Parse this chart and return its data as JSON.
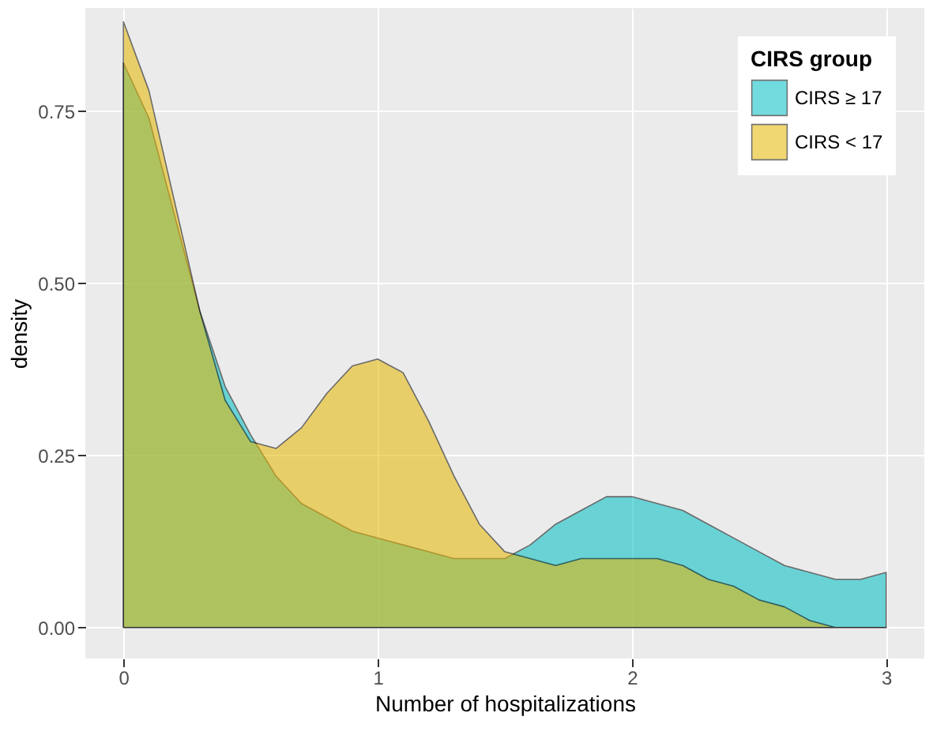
{
  "chart_data": {
    "type": "area",
    "xlabel": "Number of hospitalizations",
    "ylabel": "density",
    "legend_title": "CIRS group",
    "legend": "top right",
    "grid": true,
    "xlim": [
      -0.15,
      3.15
    ],
    "ylim": [
      -0.045,
      0.9
    ],
    "xticks": [
      0,
      1,
      2,
      3
    ],
    "yticks": [
      {
        "value": 0,
        "label": "0.00"
      },
      {
        "value": 0.25,
        "label": "0.25"
      },
      {
        "value": 0.5,
        "label": "0.50"
      },
      {
        "value": 0.75,
        "label": "0.75"
      }
    ],
    "x": [
      0,
      0.1,
      0.2,
      0.3,
      0.4,
      0.5,
      0.6,
      0.7,
      0.8,
      0.9,
      1.0,
      1.1,
      1.2,
      1.3,
      1.4,
      1.5,
      1.6,
      1.7,
      1.8,
      1.9,
      2.0,
      2.1,
      2.2,
      2.3,
      2.4,
      2.5,
      2.6,
      2.7,
      2.8,
      2.9,
      3.0
    ],
    "series": [
      {
        "name": "CIRS ≥ 17",
        "color": "#00bfc4",
        "values": [
          0.82,
          0.74,
          0.6,
          0.46,
          0.35,
          0.28,
          0.22,
          0.18,
          0.16,
          0.14,
          0.13,
          0.12,
          0.11,
          0.1,
          0.1,
          0.1,
          0.12,
          0.15,
          0.17,
          0.19,
          0.19,
          0.18,
          0.17,
          0.15,
          0.13,
          0.11,
          0.09,
          0.08,
          0.07,
          0.07,
          0.08
        ]
      },
      {
        "name": "CIRS < 17",
        "color": "#e7b800",
        "values": [
          0.88,
          0.78,
          0.62,
          0.46,
          0.33,
          0.27,
          0.26,
          0.29,
          0.34,
          0.38,
          0.39,
          0.37,
          0.3,
          0.22,
          0.15,
          0.11,
          0.1,
          0.09,
          0.1,
          0.1,
          0.1,
          0.1,
          0.09,
          0.07,
          0.06,
          0.04,
          0.03,
          0.01,
          0,
          0,
          0
        ]
      }
    ]
  }
}
